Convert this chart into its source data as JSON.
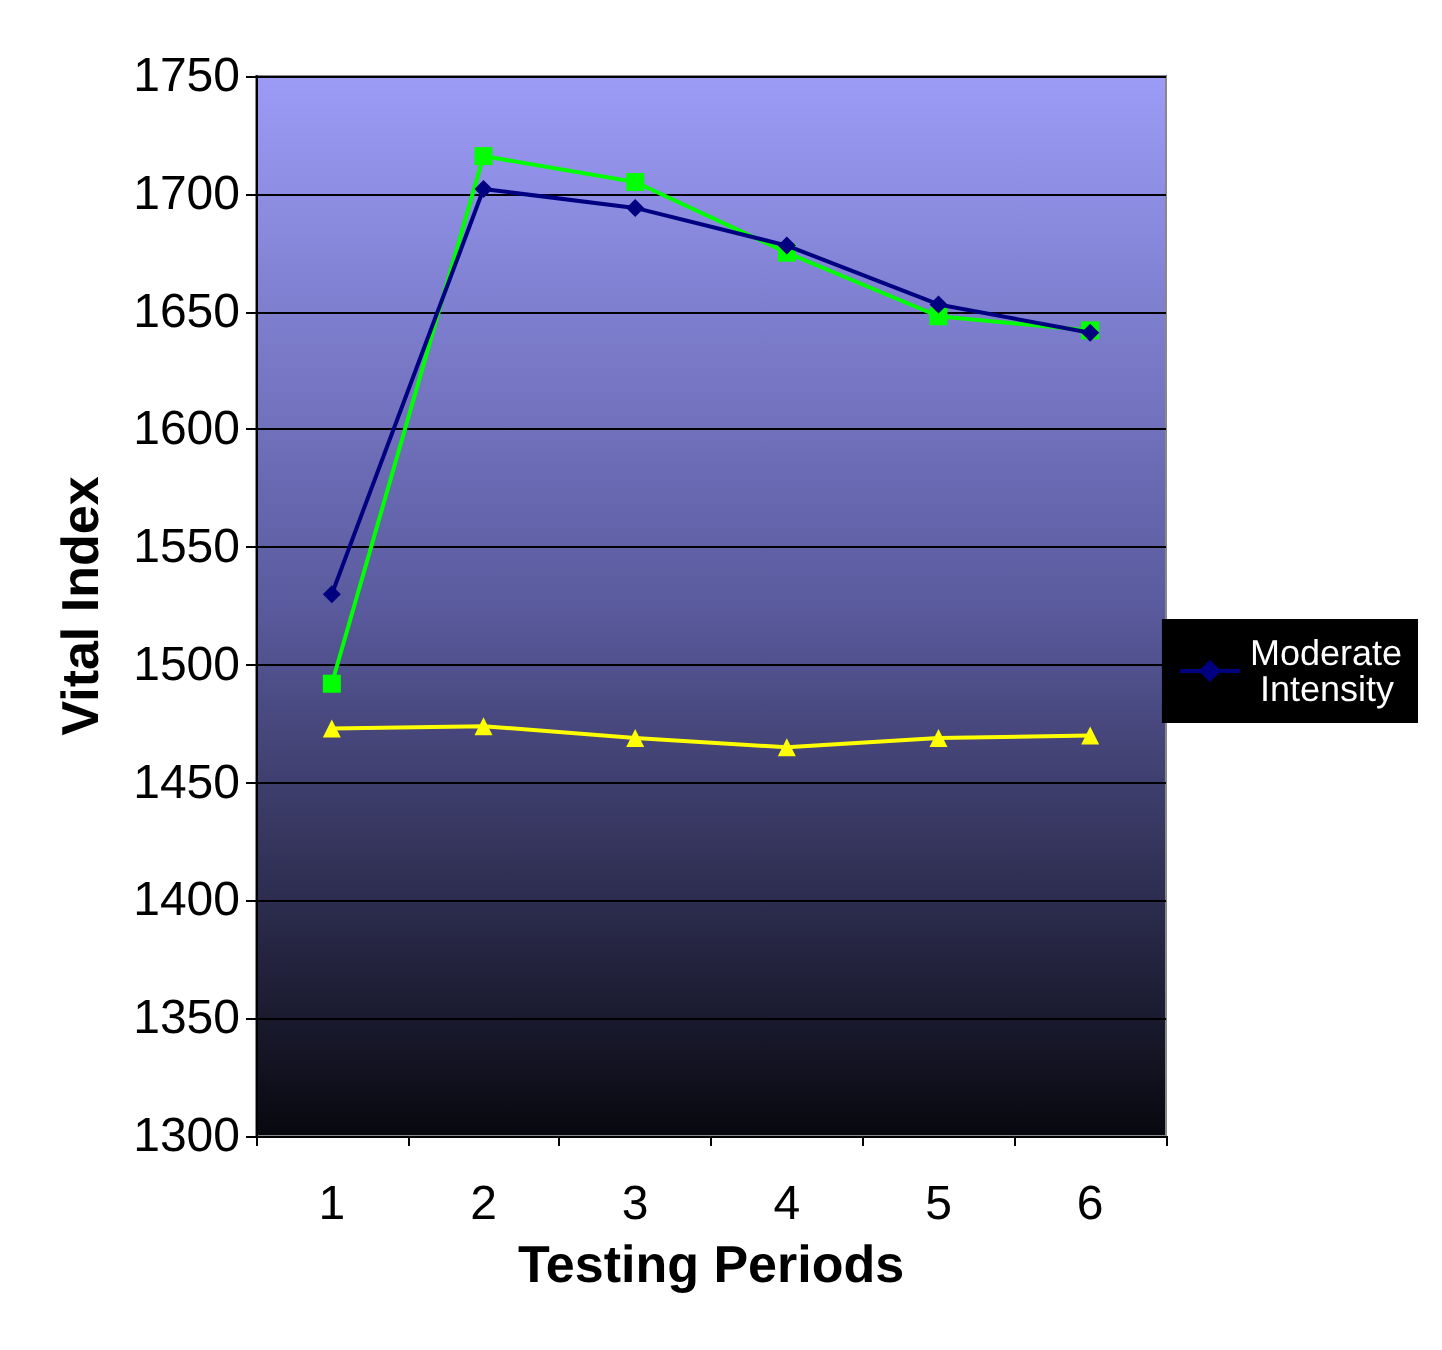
{
  "chart_data": {
    "type": "line",
    "xlabel": "Testing Periods",
    "ylabel": "Vital Index",
    "categories": [
      "1",
      "2",
      "3",
      "4",
      "5",
      "6"
    ],
    "series": [
      {
        "name": "Moderate Intensity",
        "color": "#000080",
        "marker": "diamond",
        "values": [
          1530,
          1702,
          1694,
          1678,
          1653,
          1641
        ]
      },
      {
        "color": "#00ff00",
        "marker": "square",
        "values": [
          1492,
          1716,
          1705,
          1675,
          1648,
          1642
        ]
      },
      {
        "color": "#ffff00",
        "marker": "triangle",
        "values": [
          1473,
          1474,
          1469,
          1465,
          1469,
          1470
        ]
      }
    ],
    "ylim": [
      1300,
      1750
    ],
    "yticks": [
      1300,
      1350,
      1400,
      1450,
      1500,
      1550,
      1600,
      1650,
      1700,
      1750
    ],
    "grid": "y",
    "legend": "right"
  }
}
